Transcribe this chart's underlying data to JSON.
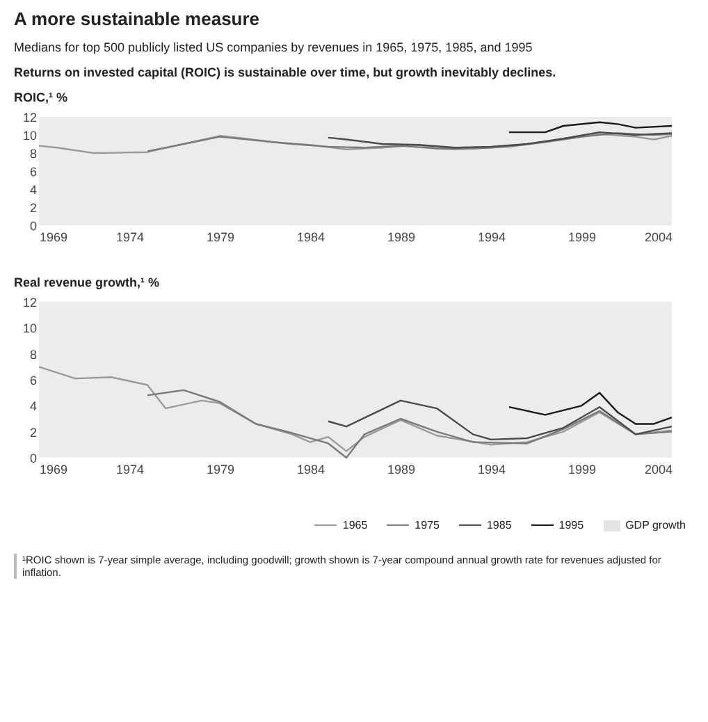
{
  "chart_data": [
    {
      "type": "line",
      "title": "A more sustainable measure",
      "subtitle": "Medians for top 500 publicly listed US companies by revenues in 1965, 1975, 1985, and 1995",
      "annotations": [
        "Returns on invested capital (ROIC) is sustainable over time, but growth inevitably declines."
      ],
      "ylabel": "ROIC,¹ %",
      "xlim": [
        1969,
        2004
      ],
      "xticks": [
        1969,
        1974,
        1979,
        1984,
        1989,
        1994,
        1999,
        2004
      ],
      "ylim": [
        0,
        12
      ],
      "yticks": [
        0,
        2,
        4,
        6,
        8,
        10,
        12
      ],
      "series": [
        {
          "color": "#9a9a9a",
          "x": [
            1969,
            1970,
            1972,
            1975,
            1977,
            1979,
            1980,
            1982,
            1984,
            1986,
            1988,
            1990,
            1991,
            1992,
            1994,
            1996,
            1998,
            2000,
            2002,
            2003,
            2004
          ],
          "values": [
            8.8,
            8.6,
            8.0,
            8.1,
            9.0,
            9.9,
            9.7,
            9.2,
            8.9,
            8.4,
            8.6,
            8.9,
            8.5,
            8.4,
            8.6,
            9.0,
            9.5,
            10.1,
            9.8,
            9.5,
            9.9
          ]
        },
        {
          "color": "#7a7a7a",
          "x": [
            1975,
            1977,
            1979,
            1981,
            1983,
            1985,
            1987,
            1989,
            1991,
            1993,
            1995,
            1997,
            1999,
            2001,
            2003,
            2004
          ],
          "values": [
            8.2,
            9.0,
            9.8,
            9.4,
            9.0,
            8.7,
            8.6,
            8.8,
            8.5,
            8.5,
            8.7,
            9.2,
            9.8,
            10.2,
            10.0,
            10.1
          ]
        },
        {
          "color": "#4a4a4a",
          "x": [
            1985,
            1986,
            1988,
            1990,
            1992,
            1994,
            1996,
            1998,
            2000,
            2002,
            2004
          ],
          "values": [
            9.7,
            9.5,
            9.0,
            8.9,
            8.6,
            8.7,
            9.0,
            9.6,
            10.3,
            10.0,
            10.2
          ]
        },
        {
          "color": "#1a1a1a",
          "x": [
            1995,
            1997,
            1998,
            2000,
            2001,
            2002,
            2004
          ],
          "values": [
            10.3,
            10.3,
            11.0,
            11.4,
            11.2,
            10.8,
            11.0
          ]
        }
      ]
    },
    {
      "type": "line",
      "ylabel": "Real revenue growth,¹ %",
      "xlim": [
        1969,
        2004
      ],
      "xticks": [
        1969,
        1974,
        1979,
        1984,
        1989,
        1994,
        1999,
        2004
      ],
      "ylim": [
        0,
        12
      ],
      "yticks": [
        0,
        2,
        4,
        6,
        8,
        10,
        12
      ],
      "legend": "bottom right",
      "annotations": [
        "GDP growth",
        "¹ROIC shown is 7-year simple average, including goodwill; growth shown is 7-year compound annual growth rate for revenues adjusted for inflation."
      ],
      "series": [
        {
          "name": "1965",
          "color": "#9a9a9a",
          "x": [
            1969,
            1971,
            1973,
            1975,
            1976,
            1978,
            1979,
            1981,
            1983,
            1984,
            1985,
            1986,
            1987,
            1989,
            1991,
            1994,
            1996,
            1998,
            2000,
            2002,
            2004
          ],
          "values": [
            7.0,
            6.1,
            6.2,
            5.6,
            3.8,
            4.4,
            4.2,
            2.6,
            1.8,
            1.2,
            1.6,
            0.5,
            1.6,
            2.9,
            1.7,
            1.0,
            1.2,
            2.0,
            3.5,
            1.8,
            2.1
          ]
        },
        {
          "name": "1975",
          "color": "#7a7a7a",
          "x": [
            1975,
            1977,
            1979,
            1981,
            1983,
            1985,
            1986,
            1987,
            1989,
            1991,
            1993,
            1996,
            1998,
            2000,
            2002,
            2004
          ],
          "values": [
            4.8,
            5.2,
            4.3,
            2.6,
            1.9,
            1.1,
            0.0,
            1.8,
            3.0,
            2.0,
            1.2,
            1.1,
            2.2,
            3.6,
            1.8,
            2.0
          ]
        },
        {
          "name": "1985",
          "color": "#4a4a4a",
          "x": [
            1985,
            1986,
            1989,
            1991,
            1993,
            1994,
            1996,
            1998,
            2000,
            2002,
            2004
          ],
          "values": [
            2.8,
            2.4,
            4.4,
            3.8,
            1.8,
            1.4,
            1.5,
            2.3,
            3.9,
            1.8,
            2.4
          ]
        },
        {
          "name": "1995",
          "color": "#1a1a1a",
          "x": [
            1995,
            1997,
            1999,
            2000,
            2001,
            2002,
            2003,
            2004
          ],
          "values": [
            3.9,
            3.3,
            4.0,
            5.0,
            3.5,
            2.6,
            2.6,
            3.1
          ]
        }
      ]
    }
  ]
}
